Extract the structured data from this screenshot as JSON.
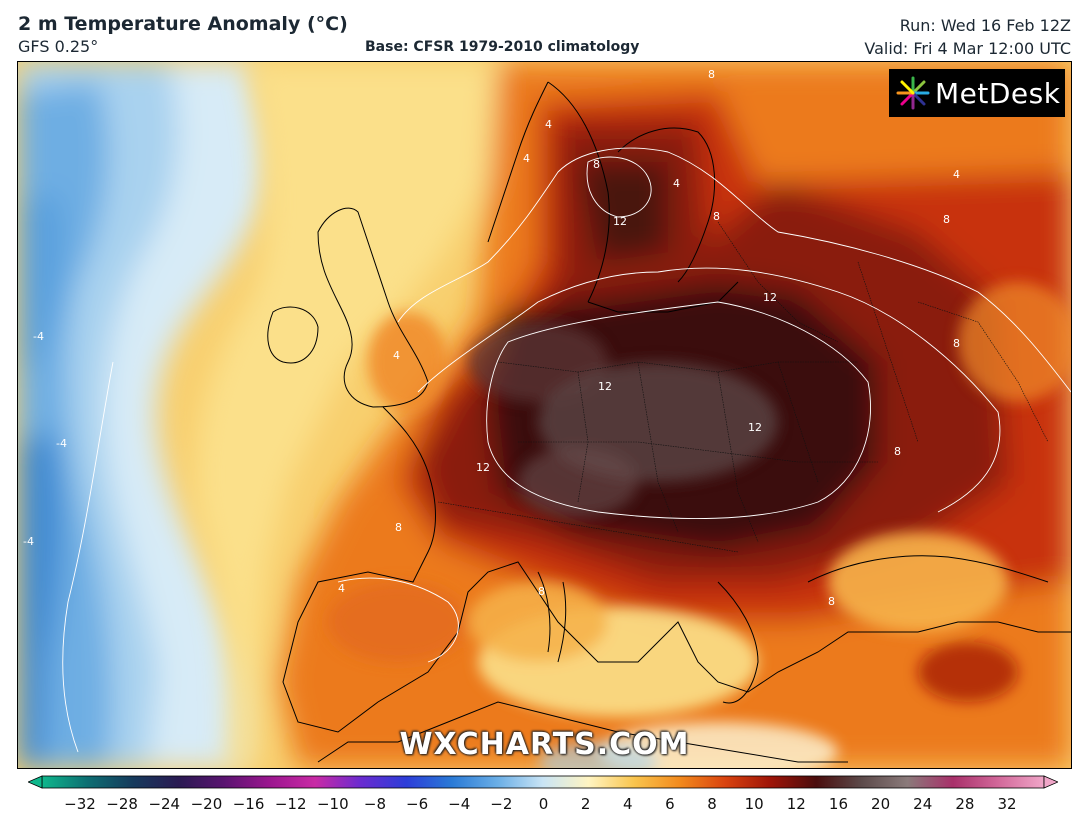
{
  "header": {
    "title": "2 m Temperature Anomaly (°C)",
    "model": "GFS 0.25°",
    "base": "Base: CFSR 1979-2010 climatology",
    "run": "Run: Wed 16 Feb 12Z",
    "valid": "Valid: Fri 4 Mar 12:00 UTC"
  },
  "logo": {
    "text": "MetDesk",
    "icon": "metdesk-starburst-icon"
  },
  "watermark": "WXCHARTS.COM",
  "contour_labels": [
    "-4",
    "-4",
    "-4",
    "4",
    "4",
    "4",
    "4",
    "4",
    "4",
    "8",
    "8",
    "8",
    "8",
    "8",
    "8",
    "8",
    "8",
    "8",
    "12",
    "12",
    "12",
    "12",
    "12"
  ],
  "colorbar": {
    "ticks": [
      "−32",
      "−28",
      "−24",
      "−20",
      "−16",
      "−12",
      "−10",
      "−8",
      "−6",
      "−4",
      "−2",
      "0",
      "2",
      "4",
      "6",
      "8",
      "10",
      "12",
      "16",
      "20",
      "24",
      "28",
      "32"
    ],
    "colors": [
      "#0fb78c",
      "#0d6e72",
      "#163a5c",
      "#2a1a52",
      "#5a1470",
      "#9b168f",
      "#c92aa5",
      "#6a2bd0",
      "#2c3dd8",
      "#2a7ad6",
      "#6aaee6",
      "#c9e4f5",
      "#fff4c2",
      "#f9c54e",
      "#f28a1d",
      "#d9430f",
      "#9e1408",
      "#4a0d0d",
      "#5c4a4a",
      "#8a7a7a",
      "#a8306a",
      "#d2689a",
      "#f0a6c8"
    ]
  },
  "colors": {
    "deep_anomaly": "#3a0d0d",
    "dark_red": "#8a1a0c",
    "red": "#c8300f",
    "orange": "#ec7a1e",
    "light_orange": "#f6b24a",
    "yellow": "#fbe08a",
    "pale": "#fdf6d8",
    "cold_light": "#d7ebf7",
    "cold": "#8fc3ea",
    "cold_deep": "#3f8ad2"
  }
}
